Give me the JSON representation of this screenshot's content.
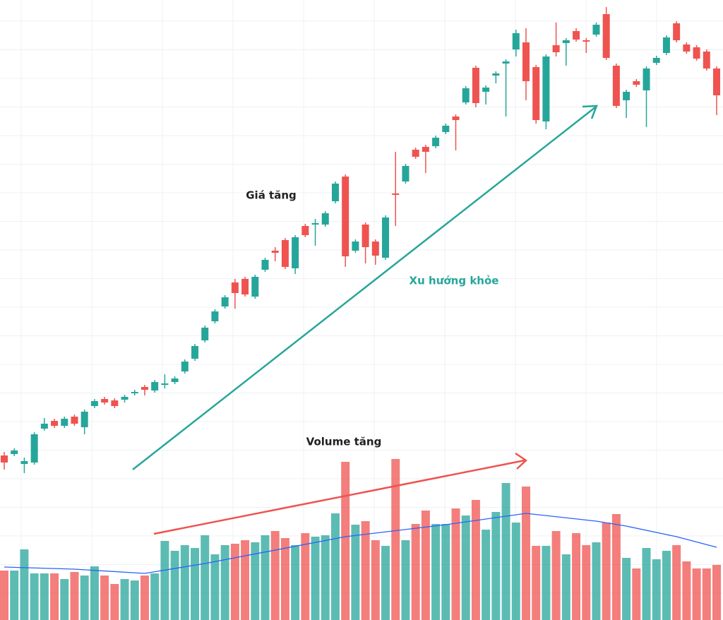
{
  "chart_data": {
    "type": "candlestick",
    "annotations": [
      "Giá tăng",
      "Xu hướng khỏe",
      "Volume tăng"
    ],
    "up_color": "#26a69a",
    "down_color": "#ef5350",
    "ma_color": "#2962ff",
    "ylim": [
      0,
      700
    ],
    "volume_ylim": [
      0,
      240
    ],
    "xlim": [
      0,
      71
    ],
    "open": [
      55,
      57,
      43,
      45,
      93,
      104,
      97,
      110,
      95,
      125,
      135,
      133,
      134,
      143,
      152,
      147,
      155,
      159,
      174,
      192,
      218,
      245,
      266,
      300,
      305,
      280,
      318,
      345,
      360,
      320,
      380,
      382,
      382,
      415,
      450,
      345,
      382,
      358,
      335,
      426,
      443,
      488,
      492,
      493,
      513,
      535,
      555,
      604,
      570,
      593,
      610,
      630,
      640,
      605,
      528,
      636,
      639,
      656,
      643,
      651,
      680,
      607,
      558,
      585,
      572,
      611,
      625,
      667,
      637,
      633,
      627,
      603
    ],
    "high": [
      60,
      65,
      52,
      88,
      108,
      107,
      110,
      113,
      120,
      135,
      138,
      136,
      141,
      148,
      155,
      162,
      170,
      167,
      191,
      213,
      239,
      262,
      282,
      305,
      308,
      311,
      335,
      350,
      363,
      367,
      383,
      390,
      401,
      443,
      453,
      361,
      385,
      361,
      395,
      485,
      468,
      491,
      495,
      508,
      525,
      538,
      578,
      607,
      579,
      599,
      616,
      658,
      660,
      608,
      623,
      668,
      646,
      660,
      646,
      668,
      690,
      610,
      573,
      588,
      606,
      621,
      650,
      670,
      640,
      636,
      630,
      606
    ],
    "low": [
      35,
      54,
      30,
      42,
      90,
      94,
      94,
      97,
      85,
      122,
      127,
      122,
      130,
      140,
      140,
      144,
      150,
      156,
      171,
      189,
      215,
      242,
      263,
      263,
      280,
      277,
      315,
      330,
      319,
      312,
      364,
      352,
      379,
      412,
      322,
      342,
      327,
      325,
      332,
      380,
      440,
      475,
      455,
      490,
      510,
      487,
      552,
      548,
      552,
      582,
      535,
      620,
      558,
      525,
      517,
      620,
      607,
      641,
      625,
      648,
      615,
      547,
      533,
      577,
      520,
      608,
      622,
      640,
      624,
      614,
      600,
      537
    ],
    "close": [
      45,
      62,
      47,
      85,
      100,
      97,
      107,
      100,
      117,
      132,
      130,
      125,
      138,
      145,
      148,
      159,
      157,
      164,
      188,
      210,
      236,
      259,
      279,
      285,
      283,
      308,
      332,
      342,
      322,
      364,
      367,
      384,
      398,
      440,
      337,
      358,
      350,
      338,
      392,
      424,
      465,
      478,
      485,
      505,
      522,
      530,
      575,
      554,
      576,
      596,
      613,
      653,
      585,
      530,
      620,
      626,
      643,
      644,
      641,
      665,
      618,
      550,
      570,
      580,
      603,
      618,
      647,
      643,
      627,
      617,
      603,
      565
    ],
    "volume": [
      70,
      70,
      100,
      66,
      66,
      66,
      58,
      68,
      63,
      76,
      63,
      51,
      58,
      56,
      63,
      66,
      112,
      98,
      106,
      102,
      120,
      93,
      106,
      108,
      113,
      110,
      120,
      126,
      116,
      106,
      123,
      118,
      120,
      151,
      224,
      135,
      140,
      113,
      105,
      228,
      113,
      136,
      155,
      136,
      136,
      158,
      148,
      170,
      128,
      153,
      194,
      138,
      189,
      105,
      105,
      126,
      93,
      123,
      106,
      110,
      138,
      150,
      88,
      73,
      102,
      86,
      98,
      106,
      83,
      73,
      73,
      78
    ],
    "ma": {
      "x": [
        0,
        7,
        14,
        20,
        34,
        44,
        52,
        59,
        62,
        67,
        71
      ],
      "values": [
        75,
        72,
        66,
        80,
        118,
        135,
        151,
        140,
        133,
        118,
        103
      ]
    }
  }
}
